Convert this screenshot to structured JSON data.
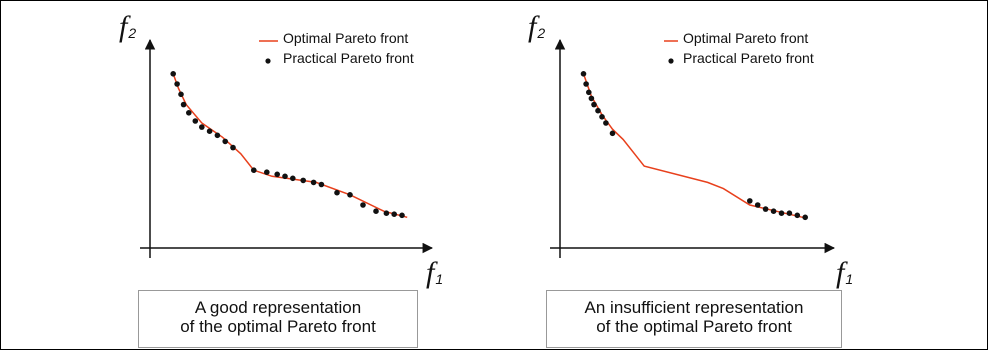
{
  "chart_data": [
    {
      "type": "scatter",
      "title": "",
      "xlabel_main": "f",
      "xlabel_sub": "1",
      "ylabel_main": "f",
      "ylabel_sub": "2",
      "xlim": [
        0,
        100
      ],
      "ylim": [
        0,
        100
      ],
      "grid": false,
      "legend_placement": "top-right",
      "legend": {
        "line_label": "Optimal Pareto front",
        "point_label": "Practical Pareto front"
      },
      "colors": {
        "line": "#e8401c",
        "points": "#111111"
      },
      "caption_line1": "A good representation",
      "caption_line2": "of the optimal Pareto front",
      "optimal_front": [
        {
          "x": 7,
          "y": 84
        },
        {
          "x": 9,
          "y": 77
        },
        {
          "x": 12,
          "y": 69
        },
        {
          "x": 18,
          "y": 60
        },
        {
          "x": 26,
          "y": 53
        },
        {
          "x": 33,
          "y": 45
        },
        {
          "x": 38,
          "y": 37
        },
        {
          "x": 45,
          "y": 34
        },
        {
          "x": 62,
          "y": 31
        },
        {
          "x": 75,
          "y": 25
        },
        {
          "x": 88,
          "y": 17
        },
        {
          "x": 97,
          "y": 14
        }
      ],
      "practical_front": [
        {
          "x": 7,
          "y": 84
        },
        {
          "x": 8.5,
          "y": 79
        },
        {
          "x": 10,
          "y": 74
        },
        {
          "x": 11,
          "y": 69
        },
        {
          "x": 13,
          "y": 65
        },
        {
          "x": 15.5,
          "y": 61
        },
        {
          "x": 18,
          "y": 58
        },
        {
          "x": 21,
          "y": 56
        },
        {
          "x": 24,
          "y": 54
        },
        {
          "x": 27,
          "y": 51
        },
        {
          "x": 30,
          "y": 48
        },
        {
          "x": 38,
          "y": 37
        },
        {
          "x": 43,
          "y": 36
        },
        {
          "x": 47,
          "y": 35
        },
        {
          "x": 50,
          "y": 34
        },
        {
          "x": 53,
          "y": 33
        },
        {
          "x": 57,
          "y": 32
        },
        {
          "x": 61,
          "y": 31
        },
        {
          "x": 64,
          "y": 30
        },
        {
          "x": 70,
          "y": 26
        },
        {
          "x": 75,
          "y": 25
        },
        {
          "x": 80,
          "y": 20
        },
        {
          "x": 85,
          "y": 17
        },
        {
          "x": 89,
          "y": 16
        },
        {
          "x": 92,
          "y": 15.5
        },
        {
          "x": 95,
          "y": 15
        }
      ]
    },
    {
      "type": "scatter",
      "title": "",
      "xlabel_main": "f",
      "xlabel_sub": "1",
      "ylabel_main": "f",
      "ylabel_sub": "2",
      "xlim": [
        0,
        100
      ],
      "ylim": [
        0,
        100
      ],
      "grid": false,
      "legend_placement": "top-right",
      "legend": {
        "line_label": "Optimal Pareto front",
        "point_label": "Practical Pareto front"
      },
      "colors": {
        "line": "#e8401c",
        "points": "#111111"
      },
      "caption_line1": "An insufficient representation",
      "caption_line2": "of the optimal Pareto front",
      "optimal_front": [
        {
          "x": 7,
          "y": 84
        },
        {
          "x": 10,
          "y": 73
        },
        {
          "x": 14,
          "y": 64
        },
        {
          "x": 18,
          "y": 57
        },
        {
          "x": 22,
          "y": 52
        },
        {
          "x": 30,
          "y": 39
        },
        {
          "x": 54,
          "y": 31
        },
        {
          "x": 60,
          "y": 28
        },
        {
          "x": 70,
          "y": 20
        },
        {
          "x": 80,
          "y": 17
        },
        {
          "x": 90,
          "y": 14
        }
      ],
      "practical_front": [
        {
          "x": 7,
          "y": 84
        },
        {
          "x": 8,
          "y": 79
        },
        {
          "x": 9,
          "y": 75
        },
        {
          "x": 10,
          "y": 72
        },
        {
          "x": 11,
          "y": 69
        },
        {
          "x": 12.5,
          "y": 66
        },
        {
          "x": 14,
          "y": 63
        },
        {
          "x": 15.5,
          "y": 60
        },
        {
          "x": 18,
          "y": 55
        },
        {
          "x": 70,
          "y": 22
        },
        {
          "x": 73,
          "y": 20
        },
        {
          "x": 76,
          "y": 18
        },
        {
          "x": 79,
          "y": 17
        },
        {
          "x": 82,
          "y": 16
        },
        {
          "x": 85,
          "y": 16
        },
        {
          "x": 88,
          "y": 15
        },
        {
          "x": 91,
          "y": 14
        }
      ]
    }
  ]
}
